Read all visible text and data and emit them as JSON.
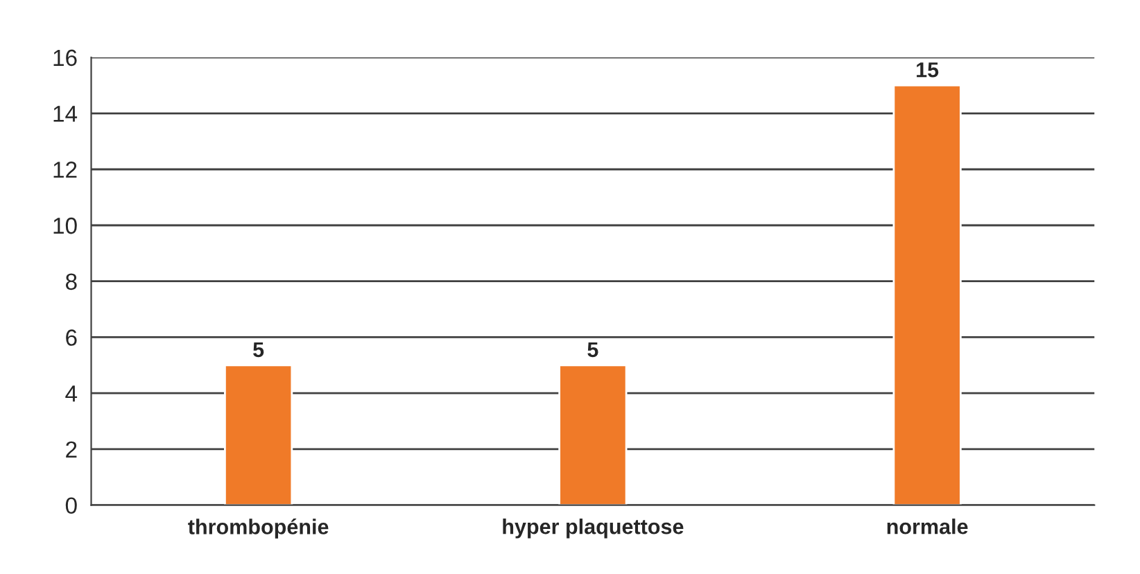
{
  "chart_data": {
    "type": "bar",
    "categories": [
      "thrombopénie",
      "hyper plaquettose",
      "normale"
    ],
    "values": [
      5,
      5,
      15
    ],
    "color": "#f07a28",
    "ylim": [
      0,
      16
    ],
    "yticks": [
      0,
      2,
      4,
      6,
      8,
      10,
      12,
      14,
      16
    ],
    "grid": "y",
    "data_labels": true
  }
}
